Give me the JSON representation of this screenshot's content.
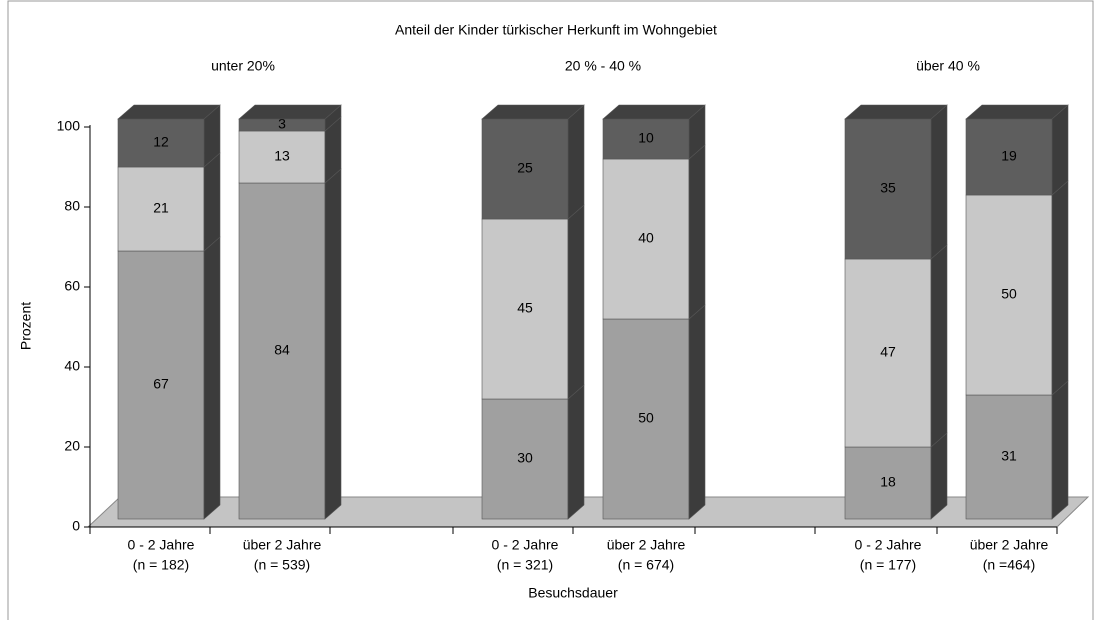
{
  "chart_data": {
    "type": "stacked-bar-3d",
    "title": "Anteil der Kinder türkischer Herkunft im Wohngebiet",
    "groups": [
      "unter 20%",
      "20 % - 40 %",
      "über 40 %"
    ],
    "categories": [
      "0 - 2 Jahre",
      "über 2 Jahre",
      "0 - 2 Jahre",
      "über 2 Jahre",
      "0 - 2 Jahre",
      "über 2 Jahre"
    ],
    "category_notes": [
      "(n = 182)",
      "(n = 539)",
      "(n = 321)",
      "(n = 674)",
      "(n = 177)",
      "(n =464)"
    ],
    "series": [
      {
        "color": "#a0a0a0",
        "label_color": "#000000",
        "values": [
          67,
          84,
          30,
          50,
          18,
          31
        ]
      },
      {
        "color": "#c8c8c8",
        "label_color": "#000000",
        "values": [
          21,
          13,
          45,
          40,
          47,
          50
        ]
      },
      {
        "color": "#5e5e5e",
        "label_color": "#ffffff",
        "values": [
          12,
          3,
          25,
          10,
          35,
          19
        ]
      }
    ],
    "ylabel": "Prozent",
    "xlabel": "Besuchsdauer",
    "ylim": [
      0,
      100
    ],
    "yticks": [
      0,
      20,
      40,
      60,
      80,
      100
    ]
  }
}
